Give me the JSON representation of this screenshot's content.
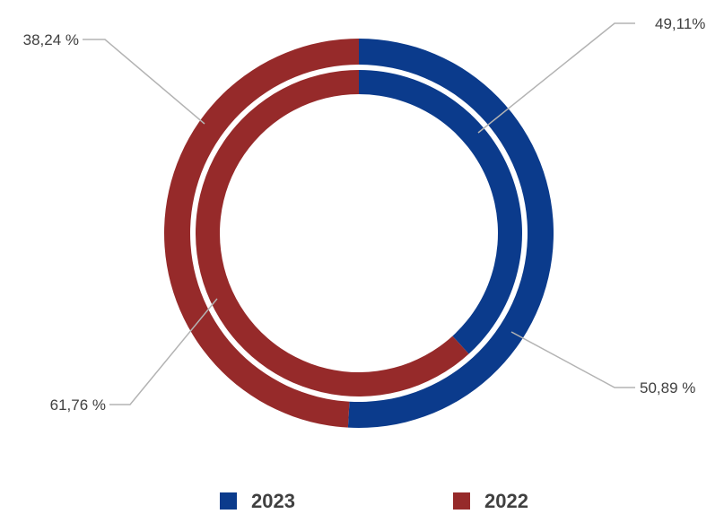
{
  "chart_data": {
    "type": "pie",
    "subtype": "doughnut",
    "title": "",
    "legend_position": "bottom",
    "categories": [
      "2023",
      "2022"
    ],
    "colors": [
      "#0b3b8c",
      "#962a2a"
    ],
    "rings": [
      {
        "ring": "outer",
        "values": [
          50.89,
          49.11
        ],
        "labels": [
          "50,89 %",
          "49,11%"
        ]
      },
      {
        "ring": "inner",
        "values": [
          38.24,
          61.76
        ],
        "labels": [
          "38,24 %",
          "61,76 %"
        ]
      }
    ]
  },
  "legend": [
    {
      "label": "2023",
      "color": "#0b3b8c"
    },
    {
      "label": "2022",
      "color": "#962a2a"
    }
  ]
}
